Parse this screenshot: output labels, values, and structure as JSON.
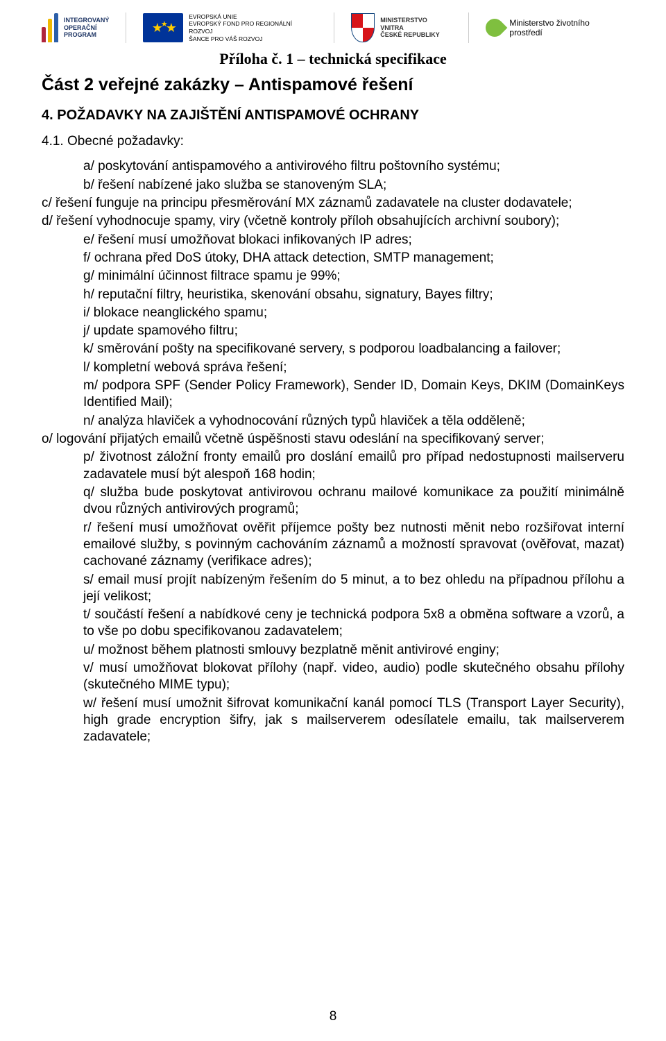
{
  "logos": {
    "iop_line1": "INTEGROVANÝ",
    "iop_line2": "OPERAČNÍ",
    "iop_line3": "PROGRAM",
    "eu_line1": "EVROPSKÁ UNIE",
    "eu_line2": "EVROPSKÝ FOND PRO REGIONÁLNÍ ROZVOJ",
    "eu_line3": "ŠANCE PRO VÁŠ ROZVOJ",
    "mv_line1": "MINISTERSTVO VNITRA",
    "mv_line2": "ČESKÉ REPUBLIKY",
    "mzp": "Ministerstvo životního prostředí"
  },
  "headings": {
    "spec": "Příloha č. 1 – technická specifikace",
    "part": "Část 2 veřejné zakázky – Antispamové řešení",
    "sec4": "4. POŽADAVKY NA ZAJIŠTĚNÍ ANTISPAMOVÉ OCHRANY",
    "sec41": "4.1. Obecné požadavky:"
  },
  "items": {
    "a": "a/ poskytování antispamového a antivirového filtru poštovního systému;",
    "b": "b/ řešení nabízené jako služba se stanoveným SLA;",
    "c": "c/ řešení funguje na principu přesměrování MX záznamů zadavatele na cluster dodavatele;",
    "d": "d/ řešení vyhodnocuje spamy, viry (včetně kontroly příloh obsahujících archivní soubory);",
    "e": "e/ řešení musí umožňovat blokaci infikovaných IP adres;",
    "f": "f/ ochrana před DoS útoky, DHA attack detection, SMTP management;",
    "g": "g/ minimální účinnost filtrace spamu je 99%;",
    "h": "h/ reputační filtry, heuristika, skenování obsahu, signatury, Bayes filtry;",
    "i": "i/ blokace neanglického spamu;",
    "j": "j/ update spamového filtru;",
    "k": "k/ směrování pošty na specifikované servery, s podporou loadbalancing a failover;",
    "l": "l/ kompletní webová správa řešení;",
    "m": "m/ podpora SPF (Sender Policy Framework), Sender ID, Domain Keys, DKIM (DomainKeys Identified Mail);",
    "n": "n/ analýza hlaviček a vyhodnocování různých typů hlaviček a těla odděleně;",
    "o": "o/ logování přijatých emailů včetně úspěšnosti stavu odeslání na specifikovaný server;",
    "p": "p/ životnost záložní fronty emailů pro doslání emailů pro případ nedostupnosti mailserveru zadavatele musí být alespoň 168 hodin;",
    "q": "q/ služba bude poskytovat antivirovou ochranu mailové komunikace za použití minimálně dvou různých antivirových programů;",
    "r": "r/ řešení musí umožňovat ověřit příjemce pošty bez nutnosti měnit nebo rozšiřovat interní emailové služby, s povinným cachováním záznamů a možností spravovat (ověřovat, mazat) cachované záznamy (verifikace adres);",
    "s": "s/ email musí projít nabízeným řešením do 5 minut, a to bez ohledu na případnou přílohu a její velikost;",
    "t": "t/ součástí řešení a nabídkové ceny je technická podpora 5x8 a obměna software a vzorů, a to vše po dobu specifikovanou zadavatelem;",
    "u": "u/ možnost během platnosti smlouvy bezplatně měnit antivirové enginy;",
    "v": "v/ musí umožňovat blokovat přílohy (např. video, audio) podle skutečného obsahu přílohy (skutečného MIME typu);",
    "w": "w/ řešení musí umožnit šifrovat komunikační kanál pomocí TLS (Transport Layer Security), high grade encryption šifry, jak s mailserverem odesílatele emailu, tak mailserverem zadavatele;"
  },
  "page_number": "8",
  "colors": {
    "iop_red": "#b0243c",
    "iop_yellow": "#f0b800",
    "iop_blue": "#2c5fa8",
    "eu_blue": "#003399",
    "eu_gold": "#ffcc00",
    "leaf_green": "#7fbf3f",
    "text": "#000000",
    "bg": "#ffffff"
  }
}
